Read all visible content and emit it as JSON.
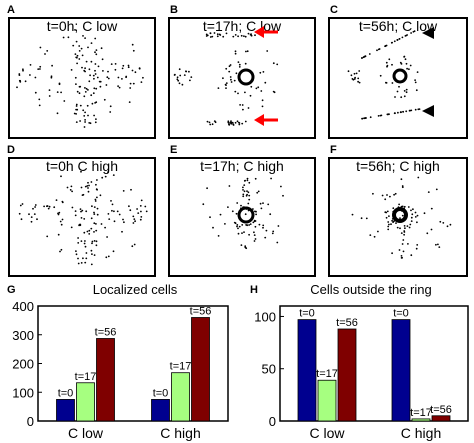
{
  "panels": [
    {
      "letter": "A",
      "title": "t=0h; C low"
    },
    {
      "letter": "B",
      "title": "t=17h; C low"
    },
    {
      "letter": "C",
      "title": "t=56h; C low"
    },
    {
      "letter": "D",
      "title": "t=0h C high"
    },
    {
      "letter": "E",
      "title": "t=17h; C high"
    },
    {
      "letter": "F",
      "title": "t=56h; C high"
    }
  ],
  "chart_data": [
    {
      "letter": "G",
      "type": "bar",
      "title": "Localized cells",
      "categories": [
        "C low",
        "C high"
      ],
      "series": [
        {
          "name": "t=0",
          "values": [
            75,
            75
          ],
          "color": "#00008f"
        },
        {
          "name": "t=17",
          "values": [
            133,
            168
          ],
          "color": "#a6ff80"
        },
        {
          "name": "t=56",
          "values": [
            287,
            360
          ],
          "color": "#7f0000"
        }
      ],
      "ylim": [
        0,
        400
      ],
      "yticks": [
        0,
        100,
        200,
        300,
        400
      ]
    },
    {
      "letter": "H",
      "type": "bar",
      "title": "Cells outside the ring",
      "categories": [
        "C low",
        "C high"
      ],
      "series": [
        {
          "name": "t=0",
          "values": [
            97,
            97
          ],
          "color": "#00008f"
        },
        {
          "name": "t=17",
          "values": [
            39,
            2
          ],
          "color": "#a6ff80"
        },
        {
          "name": "t=56",
          "values": [
            88,
            5
          ],
          "color": "#7f0000"
        }
      ],
      "ylim": [
        0,
        110
      ],
      "yticks": [
        0,
        50,
        100
      ]
    }
  ],
  "colors": {
    "arrow": "#ff0000",
    "arrowhead": "#000000"
  }
}
